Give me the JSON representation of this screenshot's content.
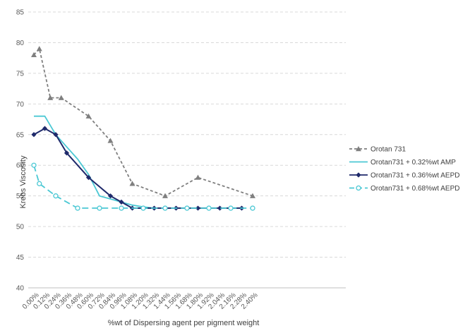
{
  "chart_data": {
    "type": "line",
    "title": "",
    "xlabel": "%wt of Dispersing agent per pigment weight",
    "ylabel": "Krebs Viscosity",
    "ylim": [
      40,
      85
    ],
    "yticks": [
      40,
      45,
      50,
      55,
      60,
      65,
      70,
      75,
      80,
      85
    ],
    "categories": [
      "0.00%",
      "0.12%",
      "0.24%",
      "0.36%",
      "0.48%",
      "0.60%",
      "0.72%",
      "0.84%",
      "0.96%",
      "1.08%",
      "1.20%",
      "1.32%",
      "1.44%",
      "1.56%",
      "1.68%",
      "1.80%",
      "1.92%",
      "2.04%",
      "2.16%",
      "2.28%",
      "2.40%"
    ],
    "grid": true,
    "legend_position": "right",
    "series": [
      {
        "name": "Orotan 731",
        "color": "#7f7f7f",
        "line_style": "dashed",
        "marker": "triangle",
        "points": [
          [
            0.0,
            78
          ],
          [
            0.06,
            79
          ],
          [
            0.18,
            71
          ],
          [
            0.3,
            71
          ],
          [
            0.6,
            68
          ],
          [
            0.84,
            64
          ],
          [
            1.08,
            57
          ],
          [
            1.44,
            55
          ],
          [
            1.8,
            58
          ],
          [
            2.4,
            55
          ]
        ]
      },
      {
        "name": "Orotan731 + 0.32%wt AMP",
        "color": "#4bc8d4",
        "line_style": "solid",
        "marker": "none",
        "points": [
          [
            0.0,
            68
          ],
          [
            0.12,
            68
          ],
          [
            0.24,
            65
          ],
          [
            0.36,
            63
          ],
          [
            0.48,
            61
          ],
          [
            0.6,
            58.5
          ],
          [
            0.72,
            55
          ],
          [
            0.84,
            54.5
          ],
          [
            0.96,
            54
          ],
          [
            1.08,
            53.5
          ],
          [
            1.2,
            53.2
          ],
          [
            1.32,
            53
          ],
          [
            1.44,
            53
          ],
          [
            1.56,
            53
          ],
          [
            1.68,
            53
          ],
          [
            1.8,
            53
          ],
          [
            1.92,
            53
          ],
          [
            2.04,
            53
          ],
          [
            2.16,
            53
          ],
          [
            2.28,
            53
          ]
        ]
      },
      {
        "name": "Orotan731 + 0.36%wt AEPD",
        "color": "#1f2a6b",
        "line_style": "solid",
        "marker": "diamond",
        "points": [
          [
            0.0,
            65
          ],
          [
            0.12,
            66
          ],
          [
            0.24,
            65
          ],
          [
            0.36,
            62
          ],
          [
            0.6,
            58
          ],
          [
            0.84,
            55
          ],
          [
            0.96,
            54
          ],
          [
            1.08,
            53
          ],
          [
            1.32,
            53
          ],
          [
            1.56,
            53
          ],
          [
            1.8,
            53
          ],
          [
            2.04,
            53
          ],
          [
            2.28,
            53
          ]
        ]
      },
      {
        "name": "Orotan731 + 0.68%wt AEPD",
        "color": "#4bc8d4",
        "line_style": "dashed",
        "marker": "circle",
        "points": [
          [
            0.0,
            60
          ],
          [
            0.06,
            57
          ],
          [
            0.24,
            55
          ],
          [
            0.48,
            53
          ],
          [
            0.72,
            53
          ],
          [
            0.96,
            53
          ],
          [
            1.2,
            53
          ],
          [
            1.44,
            53
          ],
          [
            1.68,
            53
          ],
          [
            1.92,
            53
          ],
          [
            2.16,
            53
          ],
          [
            2.4,
            53
          ]
        ]
      }
    ]
  }
}
